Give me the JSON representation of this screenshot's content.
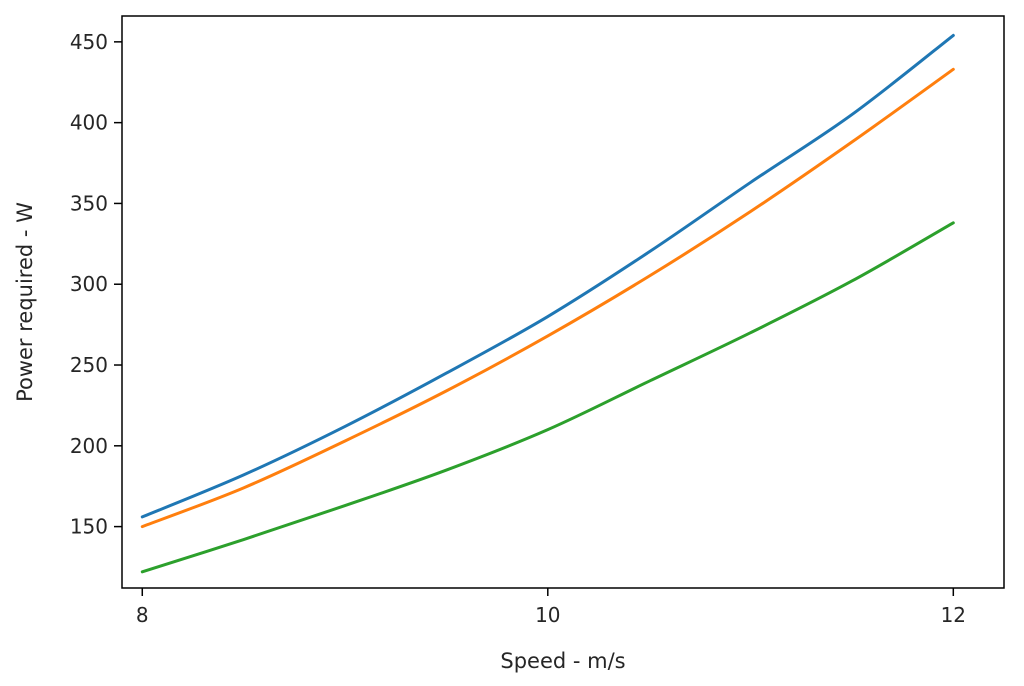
{
  "chart_data": {
    "type": "line",
    "xlabel": "Speed - m/s",
    "ylabel": "Power required - W",
    "xlim": [
      7.9,
      12.25
    ],
    "ylim": [
      112,
      466
    ],
    "xticks": [
      8,
      10,
      12
    ],
    "yticks": [
      150,
      200,
      250,
      300,
      350,
      400,
      450
    ],
    "grid": false,
    "series": [
      {
        "color": "#1f77b4",
        "x": [
          8.0,
          8.5,
          9.0,
          9.5,
          10.0,
          10.5,
          11.0,
          11.5,
          12.0
        ],
        "y": [
          156,
          182,
          212,
          245,
          280,
          320,
          363,
          405,
          454
        ]
      },
      {
        "color": "#ff7f0e",
        "x": [
          8.0,
          8.5,
          9.0,
          9.5,
          10.0,
          10.5,
          11.0,
          11.5,
          12.0
        ],
        "y": [
          150,
          174,
          203,
          234,
          268,
          305,
          345,
          388,
          433
        ]
      },
      {
        "color": "#2ca02c",
        "x": [
          8.0,
          8.5,
          9.0,
          9.5,
          10.0,
          10.5,
          11.0,
          11.5,
          12.0
        ],
        "y": [
          122,
          142,
          163,
          185,
          210,
          240,
          270,
          302,
          338
        ]
      }
    ]
  }
}
